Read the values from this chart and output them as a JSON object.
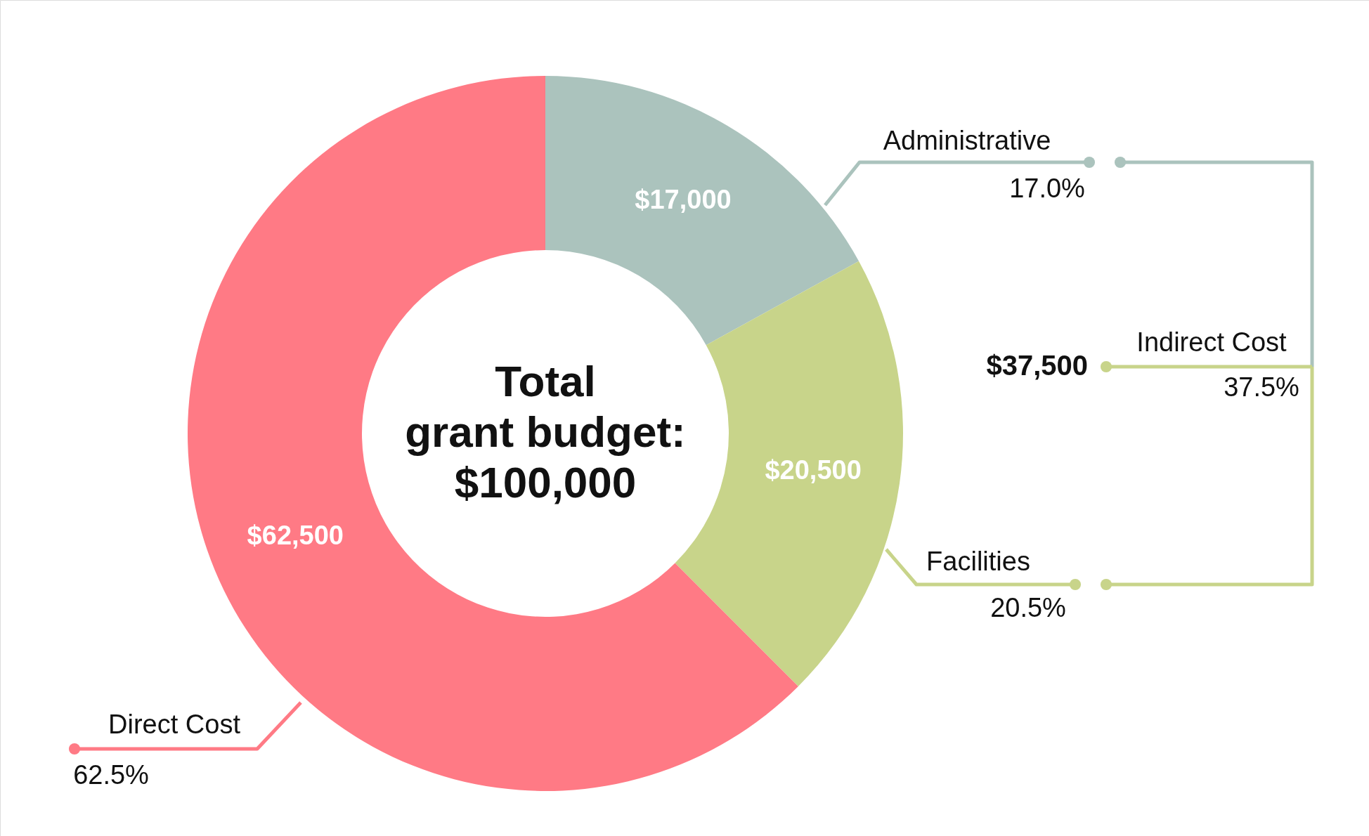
{
  "chart_data": {
    "type": "donut",
    "title": "Total\ngrant budget:\n$100,000",
    "categories": [
      "Administrative",
      "Facilities",
      "Direct Cost"
    ],
    "values": [
      17000,
      20500,
      62500
    ],
    "colors": [
      "#abc3bd",
      "#c8d48a",
      "#ff7a85"
    ],
    "value_labels": [
      "$17,000",
      "$20,500",
      "$62,500"
    ],
    "annotations": [
      "17.0%",
      "20.5%",
      "62.5%",
      "Indirect Cost",
      "$37,500",
      "37.5%"
    ]
  }
}
